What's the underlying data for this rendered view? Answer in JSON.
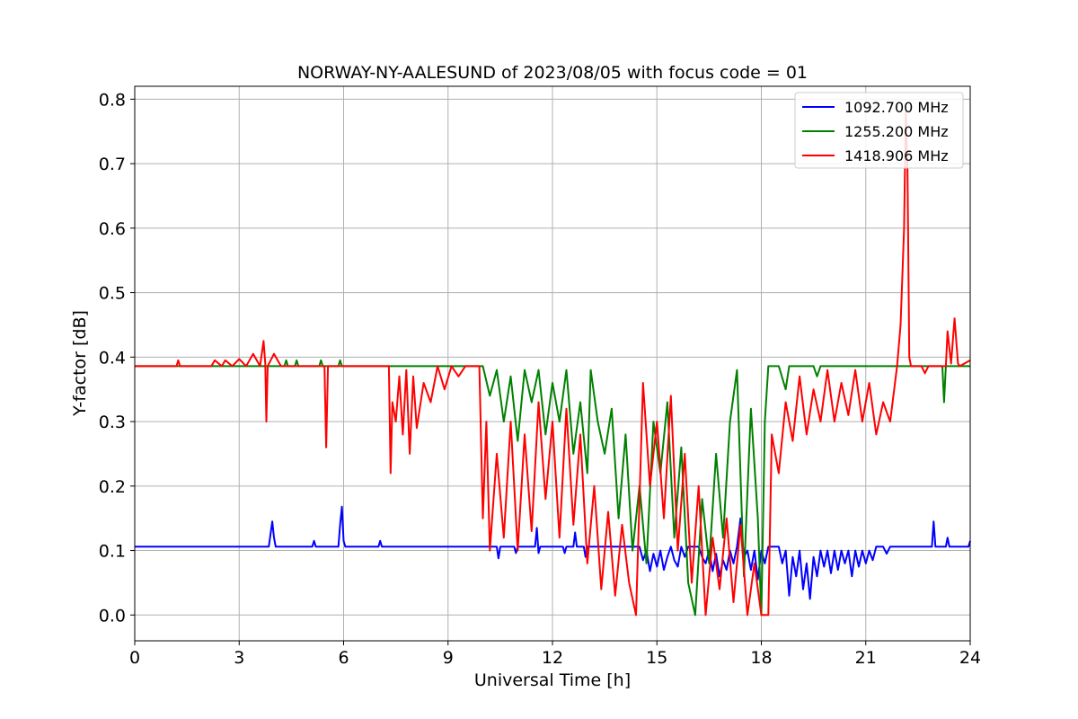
{
  "chart_data": {
    "type": "line",
    "title": "NORWAY-NY-AALESUND of 2023/08/05 with focus code = 01",
    "xlabel": "Universal Time [h]",
    "ylabel": "Y-factor [dB]",
    "xlim": [
      0,
      24
    ],
    "ylim": [
      -0.04,
      0.82
    ],
    "x_ticks": [
      0,
      3,
      6,
      9,
      12,
      15,
      18,
      21,
      24
    ],
    "x_tick_labels": [
      "0",
      "3",
      "6",
      "9",
      "12",
      "15",
      "18",
      "21",
      "24"
    ],
    "y_ticks": [
      0.0,
      0.1,
      0.2,
      0.3,
      0.4,
      0.5,
      0.6,
      0.7,
      0.8
    ],
    "y_tick_labels": [
      "0.0",
      "0.1",
      "0.2",
      "0.3",
      "0.4",
      "0.5",
      "0.6",
      "0.7",
      "0.8"
    ],
    "grid": true,
    "legend_position": "top-right",
    "series": [
      {
        "name": "1092.700 MHz",
        "color": "#0000ff",
        "points": [
          [
            0,
            0.106
          ],
          [
            3.85,
            0.106
          ],
          [
            3.9,
            0.125
          ],
          [
            3.95,
            0.145
          ],
          [
            4.0,
            0.12
          ],
          [
            4.05,
            0.106
          ],
          [
            5.1,
            0.106
          ],
          [
            5.15,
            0.115
          ],
          [
            5.2,
            0.106
          ],
          [
            5.85,
            0.106
          ],
          [
            5.9,
            0.14
          ],
          [
            5.95,
            0.168
          ],
          [
            6.0,
            0.115
          ],
          [
            6.05,
            0.106
          ],
          [
            7.0,
            0.106
          ],
          [
            7.05,
            0.115
          ],
          [
            7.1,
            0.106
          ],
          [
            10.4,
            0.106
          ],
          [
            10.45,
            0.088
          ],
          [
            10.5,
            0.106
          ],
          [
            10.9,
            0.106
          ],
          [
            10.95,
            0.096
          ],
          [
            11.0,
            0.106
          ],
          [
            11.5,
            0.106
          ],
          [
            11.55,
            0.135
          ],
          [
            11.6,
            0.096
          ],
          [
            11.65,
            0.106
          ],
          [
            12.3,
            0.106
          ],
          [
            12.35,
            0.096
          ],
          [
            12.4,
            0.106
          ],
          [
            12.6,
            0.106
          ],
          [
            12.65,
            0.128
          ],
          [
            12.7,
            0.106
          ],
          [
            12.9,
            0.106
          ],
          [
            12.95,
            0.09
          ],
          [
            13.0,
            0.106
          ],
          [
            14.5,
            0.106
          ],
          [
            14.6,
            0.085
          ],
          [
            14.7,
            0.1
          ],
          [
            14.8,
            0.068
          ],
          [
            14.9,
            0.095
          ],
          [
            15.0,
            0.075
          ],
          [
            15.1,
            0.1
          ],
          [
            15.2,
            0.07
          ],
          [
            15.3,
            0.09
          ],
          [
            15.4,
            0.106
          ],
          [
            15.5,
            0.085
          ],
          [
            15.6,
            0.075
          ],
          [
            15.7,
            0.106
          ],
          [
            15.8,
            0.09
          ],
          [
            15.9,
            0.106
          ],
          [
            16.2,
            0.106
          ],
          [
            16.3,
            0.09
          ],
          [
            16.4,
            0.08
          ],
          [
            16.5,
            0.1
          ],
          [
            16.6,
            0.068
          ],
          [
            16.7,
            0.095
          ],
          [
            16.8,
            0.06
          ],
          [
            16.9,
            0.085
          ],
          [
            17.0,
            0.07
          ],
          [
            17.1,
            0.1
          ],
          [
            17.2,
            0.08
          ],
          [
            17.3,
            0.106
          ],
          [
            17.4,
            0.15
          ],
          [
            17.5,
            0.09
          ],
          [
            17.6,
            0.1
          ],
          [
            17.7,
            0.07
          ],
          [
            17.8,
            0.1
          ],
          [
            17.9,
            0.055
          ],
          [
            18.0,
            0.1
          ],
          [
            18.1,
            0.08
          ],
          [
            18.2,
            0.106
          ],
          [
            18.5,
            0.106
          ],
          [
            18.6,
            0.08
          ],
          [
            18.7,
            0.1
          ],
          [
            18.8,
            0.03
          ],
          [
            18.9,
            0.09
          ],
          [
            19.0,
            0.06
          ],
          [
            19.1,
            0.1
          ],
          [
            19.2,
            0.04
          ],
          [
            19.3,
            0.08
          ],
          [
            19.4,
            0.025
          ],
          [
            19.5,
            0.09
          ],
          [
            19.6,
            0.06
          ],
          [
            19.7,
            0.1
          ],
          [
            19.8,
            0.075
          ],
          [
            19.9,
            0.1
          ],
          [
            20.0,
            0.065
          ],
          [
            20.1,
            0.1
          ],
          [
            20.2,
            0.07
          ],
          [
            20.3,
            0.1
          ],
          [
            20.4,
            0.08
          ],
          [
            20.5,
            0.1
          ],
          [
            20.6,
            0.06
          ],
          [
            20.7,
            0.1
          ],
          [
            20.8,
            0.075
          ],
          [
            20.9,
            0.1
          ],
          [
            21.0,
            0.08
          ],
          [
            21.1,
            0.1
          ],
          [
            21.2,
            0.085
          ],
          [
            21.3,
            0.106
          ],
          [
            21.5,
            0.106
          ],
          [
            21.6,
            0.095
          ],
          [
            21.7,
            0.106
          ],
          [
            22.9,
            0.106
          ],
          [
            22.95,
            0.145
          ],
          [
            23.0,
            0.106
          ],
          [
            23.3,
            0.106
          ],
          [
            23.35,
            0.12
          ],
          [
            23.4,
            0.106
          ],
          [
            23.95,
            0.106
          ],
          [
            24.0,
            0.115
          ]
        ]
      },
      {
        "name": "1255.200 MHz",
        "color": "#008000",
        "points": [
          [
            0,
            0.386
          ],
          [
            4.3,
            0.386
          ],
          [
            4.35,
            0.395
          ],
          [
            4.4,
            0.386
          ],
          [
            4.6,
            0.386
          ],
          [
            4.65,
            0.395
          ],
          [
            4.7,
            0.386
          ],
          [
            5.3,
            0.386
          ],
          [
            5.35,
            0.395
          ],
          [
            5.4,
            0.386
          ],
          [
            5.85,
            0.386
          ],
          [
            5.9,
            0.395
          ],
          [
            5.95,
            0.386
          ],
          [
            10.0,
            0.386
          ],
          [
            10.2,
            0.34
          ],
          [
            10.4,
            0.38
          ],
          [
            10.6,
            0.3
          ],
          [
            10.8,
            0.37
          ],
          [
            11.0,
            0.27
          ],
          [
            11.2,
            0.38
          ],
          [
            11.4,
            0.33
          ],
          [
            11.6,
            0.38
          ],
          [
            11.8,
            0.28
          ],
          [
            12.0,
            0.36
          ],
          [
            12.2,
            0.3
          ],
          [
            12.4,
            0.38
          ],
          [
            12.6,
            0.25
          ],
          [
            12.8,
            0.33
          ],
          [
            13.0,
            0.22
          ],
          [
            13.1,
            0.38
          ],
          [
            13.3,
            0.3
          ],
          [
            13.5,
            0.25
          ],
          [
            13.7,
            0.32
          ],
          [
            13.9,
            0.15
          ],
          [
            14.1,
            0.28
          ],
          [
            14.3,
            0.1
          ],
          [
            14.5,
            0.2
          ],
          [
            14.7,
            0.08
          ],
          [
            14.9,
            0.3
          ],
          [
            15.1,
            0.22
          ],
          [
            15.3,
            0.33
          ],
          [
            15.5,
            0.12
          ],
          [
            15.7,
            0.26
          ],
          [
            15.9,
            0.05
          ],
          [
            16.1,
            0.0
          ],
          [
            16.3,
            0.18
          ],
          [
            16.5,
            0.08
          ],
          [
            16.7,
            0.25
          ],
          [
            16.9,
            0.12
          ],
          [
            17.1,
            0.3
          ],
          [
            17.3,
            0.38
          ],
          [
            17.5,
            0.06
          ],
          [
            17.7,
            0.32
          ],
          [
            17.9,
            0.15
          ],
          [
            18.0,
            0.0
          ],
          [
            18.1,
            0.3
          ],
          [
            18.2,
            0.386
          ],
          [
            18.5,
            0.386
          ],
          [
            18.7,
            0.35
          ],
          [
            18.8,
            0.386
          ],
          [
            19.5,
            0.386
          ],
          [
            19.6,
            0.37
          ],
          [
            19.7,
            0.386
          ],
          [
            23.2,
            0.386
          ],
          [
            23.25,
            0.33
          ],
          [
            23.3,
            0.386
          ],
          [
            24.0,
            0.386
          ]
        ]
      },
      {
        "name": "1418.906 MHz",
        "color": "#ff0000",
        "points": [
          [
            0,
            0.386
          ],
          [
            1.2,
            0.386
          ],
          [
            1.25,
            0.395
          ],
          [
            1.3,
            0.386
          ],
          [
            2.2,
            0.386
          ],
          [
            2.3,
            0.395
          ],
          [
            2.5,
            0.386
          ],
          [
            2.6,
            0.395
          ],
          [
            2.8,
            0.386
          ],
          [
            3.0,
            0.397
          ],
          [
            3.2,
            0.386
          ],
          [
            3.4,
            0.405
          ],
          [
            3.6,
            0.386
          ],
          [
            3.7,
            0.425
          ],
          [
            3.75,
            0.39
          ],
          [
            3.78,
            0.3
          ],
          [
            3.82,
            0.386
          ],
          [
            4.0,
            0.405
          ],
          [
            4.2,
            0.386
          ],
          [
            5.45,
            0.386
          ],
          [
            5.5,
            0.26
          ],
          [
            5.55,
            0.386
          ],
          [
            7.3,
            0.386
          ],
          [
            7.35,
            0.22
          ],
          [
            7.4,
            0.33
          ],
          [
            7.5,
            0.3
          ],
          [
            7.6,
            0.37
          ],
          [
            7.7,
            0.28
          ],
          [
            7.8,
            0.38
          ],
          [
            7.9,
            0.25
          ],
          [
            8.0,
            0.37
          ],
          [
            8.1,
            0.29
          ],
          [
            8.3,
            0.36
          ],
          [
            8.5,
            0.33
          ],
          [
            8.7,
            0.386
          ],
          [
            8.9,
            0.35
          ],
          [
            9.1,
            0.386
          ],
          [
            9.3,
            0.37
          ],
          [
            9.5,
            0.386
          ],
          [
            9.9,
            0.386
          ],
          [
            10.0,
            0.15
          ],
          [
            10.1,
            0.3
          ],
          [
            10.2,
            0.1
          ],
          [
            10.4,
            0.25
          ],
          [
            10.6,
            0.12
          ],
          [
            10.8,
            0.3
          ],
          [
            11.0,
            0.1
          ],
          [
            11.2,
            0.28
          ],
          [
            11.4,
            0.13
          ],
          [
            11.6,
            0.33
          ],
          [
            11.8,
            0.18
          ],
          [
            12.0,
            0.3
          ],
          [
            12.2,
            0.12
          ],
          [
            12.4,
            0.32
          ],
          [
            12.6,
            0.14
          ],
          [
            12.8,
            0.28
          ],
          [
            13.0,
            0.08
          ],
          [
            13.2,
            0.2
          ],
          [
            13.4,
            0.04
          ],
          [
            13.6,
            0.16
          ],
          [
            13.8,
            0.03
          ],
          [
            14.0,
            0.14
          ],
          [
            14.2,
            0.05
          ],
          [
            14.4,
            0.0
          ],
          [
            14.6,
            0.36
          ],
          [
            14.8,
            0.2
          ],
          [
            15.0,
            0.3
          ],
          [
            15.2,
            0.15
          ],
          [
            15.4,
            0.34
          ],
          [
            15.6,
            0.1
          ],
          [
            15.8,
            0.25
          ],
          [
            16.0,
            0.05
          ],
          [
            16.2,
            0.2
          ],
          [
            16.4,
            0.0
          ],
          [
            16.6,
            0.12
          ],
          [
            16.8,
            0.04
          ],
          [
            17.0,
            0.15
          ],
          [
            17.2,
            0.02
          ],
          [
            17.4,
            0.14
          ],
          [
            17.6,
            0.0
          ],
          [
            17.8,
            0.08
          ],
          [
            18.0,
            0.0
          ],
          [
            18.2,
            0.0
          ],
          [
            18.3,
            0.28
          ],
          [
            18.5,
            0.22
          ],
          [
            18.7,
            0.33
          ],
          [
            18.9,
            0.27
          ],
          [
            19.1,
            0.37
          ],
          [
            19.3,
            0.28
          ],
          [
            19.5,
            0.35
          ],
          [
            19.7,
            0.3
          ],
          [
            19.9,
            0.38
          ],
          [
            20.1,
            0.3
          ],
          [
            20.3,
            0.36
          ],
          [
            20.5,
            0.31
          ],
          [
            20.7,
            0.38
          ],
          [
            20.9,
            0.3
          ],
          [
            21.1,
            0.36
          ],
          [
            21.3,
            0.28
          ],
          [
            21.5,
            0.33
          ],
          [
            21.7,
            0.3
          ],
          [
            21.9,
            0.386
          ],
          [
            22.0,
            0.45
          ],
          [
            22.1,
            0.6
          ],
          [
            22.15,
            0.78
          ],
          [
            22.2,
            0.69
          ],
          [
            22.25,
            0.4
          ],
          [
            22.3,
            0.386
          ],
          [
            22.6,
            0.386
          ],
          [
            22.7,
            0.375
          ],
          [
            22.8,
            0.386
          ],
          [
            23.3,
            0.386
          ],
          [
            23.35,
            0.44
          ],
          [
            23.45,
            0.39
          ],
          [
            23.55,
            0.46
          ],
          [
            23.65,
            0.39
          ],
          [
            23.7,
            0.386
          ],
          [
            24.0,
            0.395
          ]
        ]
      }
    ]
  }
}
